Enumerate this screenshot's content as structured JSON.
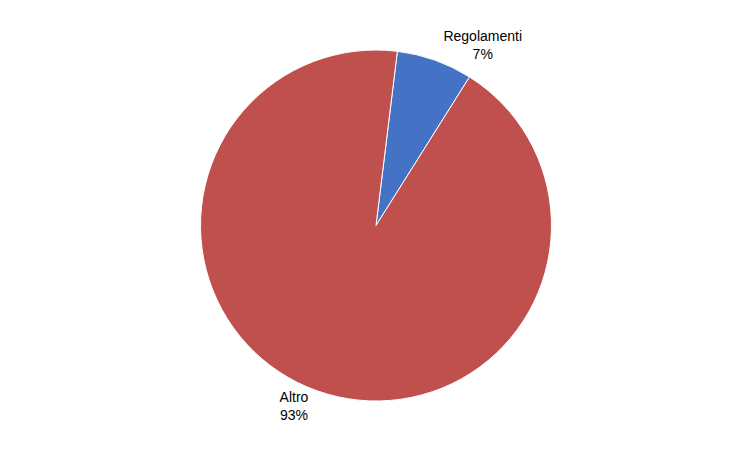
{
  "chart_data": {
    "type": "pie",
    "categories": [
      "Regolamenti",
      "Altro"
    ],
    "values": [
      7,
      93
    ],
    "value_labels": [
      "7%",
      "93%"
    ],
    "data_labels": true,
    "colors": [
      "#4472C4",
      "#C0504D"
    ]
  }
}
